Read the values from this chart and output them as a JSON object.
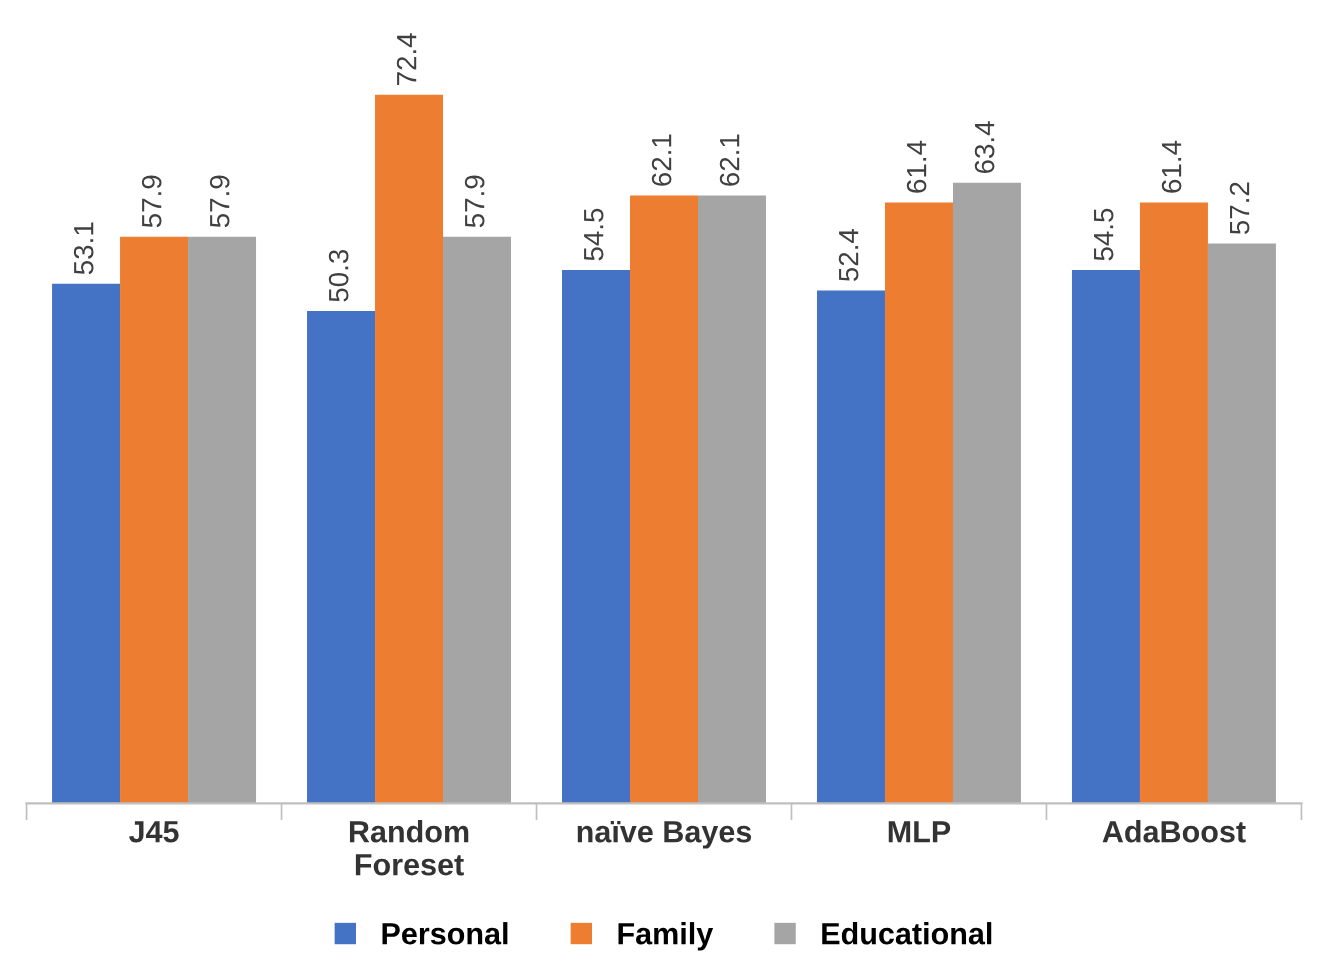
{
  "chart_data": {
    "type": "bar",
    "categories": [
      "J45",
      "Random\nForeset",
      "naïve Bayes",
      "MLP",
      "AdaBoost"
    ],
    "series": [
      {
        "name": "Personal",
        "color": "#4472c4",
        "values": [
          53.1,
          50.3,
          54.5,
          52.4,
          54.5
        ]
      },
      {
        "name": "Family",
        "color": "#ed7d31",
        "values": [
          57.9,
          72.4,
          62.1,
          61.4,
          61.4
        ]
      },
      {
        "name": "Educational",
        "color": "#a5a5a5",
        "values": [
          57.9,
          57.9,
          62.1,
          63.4,
          57.2
        ]
      }
    ],
    "data_labels": true,
    "legend": "bottom",
    "grid": false
  }
}
